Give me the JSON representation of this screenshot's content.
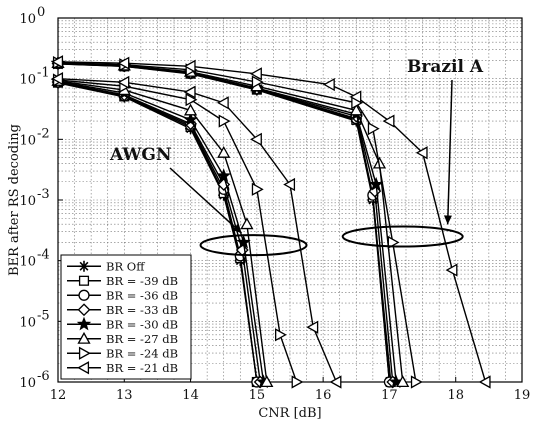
{
  "chart_data": {
    "type": "line",
    "xlabel": "CNR [dB]",
    "ylabel": "BER after RS decoding",
    "xlim": [
      12,
      19
    ],
    "ylim": [
      1e-06,
      1
    ],
    "yscale": "log",
    "grid": true,
    "x_ticks": [
      "12",
      "13",
      "14",
      "15",
      "16",
      "17",
      "18",
      "19"
    ],
    "y_ticks": [
      {
        "base": "10",
        "exp": "0",
        "value": 1
      },
      {
        "base": "10",
        "exp": "-1",
        "value": 0.1
      },
      {
        "base": "10",
        "exp": "-2",
        "value": 0.01
      },
      {
        "base": "10",
        "exp": "-3",
        "value": 0.001
      },
      {
        "base": "10",
        "exp": "-4",
        "value": 0.0001
      },
      {
        "base": "10",
        "exp": "-5",
        "value": 1e-05
      },
      {
        "base": "10",
        "exp": "-6",
        "value": 1e-06
      }
    ],
    "legend_position": "lower-left",
    "annotations": [
      {
        "text": "AWGN",
        "ellipse_center": [
          14.95,
          0.00018
        ]
      },
      {
        "text": "Brazil A",
        "ellipse_center": [
          17.2,
          0.00025
        ]
      }
    ],
    "series": [
      {
        "name": "BR Off",
        "marker": "asterisk",
        "awgn": {
          "x": [
            12,
            13,
            14,
            14.5,
            14.75,
            15.0
          ],
          "y": [
            0.085,
            0.05,
            0.015,
            0.0012,
            0.0001,
            1e-06
          ]
        },
        "brazil": {
          "x": [
            12,
            13,
            14,
            15,
            16.5,
            16.75,
            17.0
          ],
          "y": [
            0.175,
            0.16,
            0.12,
            0.065,
            0.02,
            0.001,
            1e-06
          ]
        }
      },
      {
        "name": "BR = -39 dB",
        "marker": "square",
        "awgn": {
          "x": [
            12,
            13,
            14,
            14.5,
            14.75,
            15.0
          ],
          "y": [
            0.086,
            0.051,
            0.016,
            0.0013,
            0.00011,
            1e-06
          ]
        },
        "brazil": {
          "x": [
            12,
            13,
            14,
            15,
            16.5,
            16.75,
            17.02
          ],
          "y": [
            0.176,
            0.16,
            0.121,
            0.066,
            0.021,
            0.0011,
            1e-06
          ]
        }
      },
      {
        "name": "BR = -36 dB",
        "marker": "circle",
        "awgn": {
          "x": [
            12,
            13,
            14,
            14.5,
            14.75,
            15.0
          ],
          "y": [
            0.087,
            0.052,
            0.017,
            0.0015,
            0.00012,
            1e-06
          ]
        },
        "brazil": {
          "x": [
            12,
            13,
            14,
            15,
            16.5,
            16.75,
            17.0
          ],
          "y": [
            0.177,
            0.161,
            0.122,
            0.067,
            0.022,
            0.0012,
            1e-06
          ]
        }
      },
      {
        "name": "BR = -33 dB",
        "marker": "diamond",
        "awgn": {
          "x": [
            12,
            13,
            14,
            14.5,
            14.78,
            15.05
          ],
          "y": [
            0.088,
            0.054,
            0.018,
            0.0018,
            0.00015,
            1e-06
          ]
        },
        "brazil": {
          "x": [
            12,
            13,
            14,
            15,
            16.5,
            16.78,
            17.05
          ],
          "y": [
            0.178,
            0.162,
            0.124,
            0.068,
            0.024,
            0.0014,
            1e-06
          ]
        }
      },
      {
        "name": "BR = -30 dB",
        "marker": "star",
        "awgn": {
          "x": [
            12,
            13,
            14,
            14.5,
            14.8,
            15.1
          ],
          "y": [
            0.09,
            0.058,
            0.021,
            0.0025,
            0.0002,
            1e-06
          ]
        },
        "brazil": {
          "x": [
            12,
            13,
            14,
            15,
            16.5,
            16.8,
            17.1
          ],
          "y": [
            0.18,
            0.163,
            0.126,
            0.07,
            0.026,
            0.0018,
            1e-06
          ]
        }
      },
      {
        "name": "BR = -27 dB",
        "marker": "triangle-up",
        "awgn": {
          "x": [
            12,
            13,
            14,
            14.5,
            14.85,
            15.15
          ],
          "y": [
            0.092,
            0.065,
            0.03,
            0.006,
            0.0004,
            1e-06
          ]
        },
        "brazil": {
          "x": [
            12,
            13,
            14,
            15,
            16.5,
            16.85,
            17.2
          ],
          "y": [
            0.182,
            0.165,
            0.13,
            0.075,
            0.03,
            0.004,
            1e-06
          ]
        }
      },
      {
        "name": "BR = -24 dB",
        "marker": "triangle-right",
        "awgn": {
          "x": [
            12,
            13,
            14,
            14.5,
            15.0,
            15.35,
            15.6
          ],
          "y": [
            0.095,
            0.075,
            0.045,
            0.02,
            0.0015,
            6e-06,
            1e-06
          ]
        },
        "brazil": {
          "x": [
            12,
            13,
            14,
            15,
            16.5,
            16.75,
            17.05,
            17.4
          ],
          "y": [
            0.184,
            0.17,
            0.14,
            0.088,
            0.04,
            0.015,
            0.0002,
            1e-06
          ]
        }
      },
      {
        "name": "BR = -21 dB",
        "marker": "triangle-left",
        "awgn": {
          "x": [
            12,
            13,
            14,
            14.5,
            15.0,
            15.5,
            15.85,
            16.2
          ],
          "y": [
            0.1,
            0.087,
            0.06,
            0.04,
            0.01,
            0.0018,
            8e-06,
            1e-06
          ]
        },
        "brazil": {
          "x": [
            12,
            13,
            14,
            15,
            16.1,
            16.5,
            17.0,
            17.5,
            17.95,
            18.45
          ],
          "y": [
            0.19,
            0.18,
            0.16,
            0.12,
            0.08,
            0.05,
            0.02,
            0.006,
            7e-05,
            1e-06
          ]
        }
      }
    ]
  }
}
